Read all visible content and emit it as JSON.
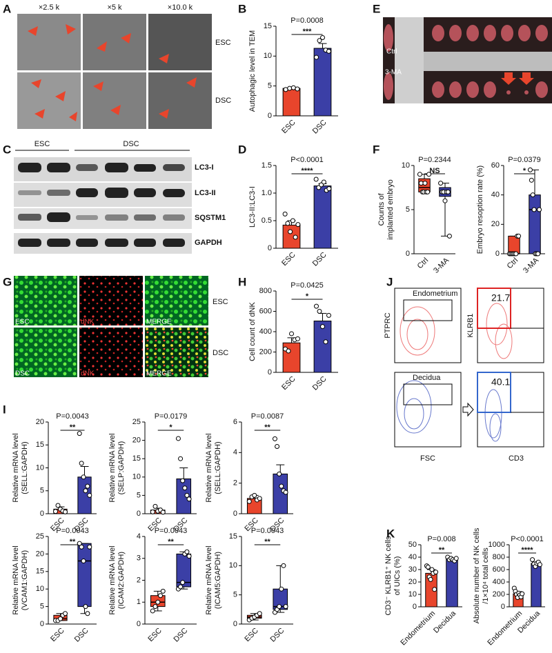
{
  "figure": {
    "panel_labels": [
      "A",
      "B",
      "C",
      "D",
      "E",
      "F",
      "G",
      "H",
      "I",
      "J",
      "K"
    ],
    "A": {
      "magnifications": [
        "×2.5 k",
        "×5 k",
        "×10.0 k"
      ],
      "rows": [
        "ESC",
        "DSC"
      ]
    },
    "C": {
      "groups": [
        "ESC",
        "DSC"
      ],
      "bands": [
        "LC3-I",
        "LC3-II",
        "SQSTM1",
        "GAPDH"
      ]
    },
    "E": {
      "rows": [
        "Ctrl",
        "3-MA"
      ]
    },
    "G": {
      "columns": [
        "ESC",
        "dNK",
        "MERGE"
      ],
      "columns_bottom": [
        "DSC",
        "dNK",
        "MERGE"
      ],
      "rows": [
        "ESC",
        "DSC"
      ]
    },
    "J": {
      "rows": [
        "Endometrium",
        "Decidua"
      ],
      "x_labels": [
        "FSC",
        "CD3"
      ],
      "y_labels": [
        "PTPRC",
        "KLRB1"
      ],
      "gate_values": [
        21.7,
        40.1
      ]
    }
  },
  "chart_data": [
    {
      "type": "bar",
      "y_label": [
        "Autophagic level in TEM"
      ],
      "categories": [
        "ESC",
        "DSC"
      ],
      "values": [
        4.6,
        11.3
      ],
      "errors": [
        0.1,
        0.8
      ],
      "colors": [
        "#e8452c",
        "#3b3fa6"
      ],
      "points": [
        [
          4.4,
          4.6,
          4.7,
          4.5
        ],
        [
          9.8,
          12.6,
          13.1,
          11.0,
          10.8
        ]
      ],
      "ylim": [
        0,
        15
      ],
      "yticks": [
        0,
        5,
        10,
        15
      ],
      "annotation": "P=0.0008",
      "significance": "***"
    },
    {
      "type": "bar",
      "y_label": [
        "LC3-II:LC3-I"
      ],
      "categories": [
        "ESC",
        "DSC"
      ],
      "values": [
        0.42,
        1.13
      ],
      "errors": [
        0.08,
        0.04
      ],
      "colors": [
        "#e8452c",
        "#3b3fa6"
      ],
      "points": [
        [
          0.62,
          0.45,
          0.3,
          0.5,
          0.2,
          0.43
        ],
        [
          1.25,
          1.1,
          1.15,
          1.2,
          1.05,
          1.08
        ]
      ],
      "ylim": [
        0,
        1.5
      ],
      "yticks": [
        0,
        0.5,
        {
          "value": 1,
          "label": "1.0"
        },
        1.5
      ],
      "annotation": "P<0.0001",
      "significance": "****"
    },
    {
      "type": "box",
      "y_label": [
        "Counts of",
        "implanted embryo"
      ],
      "categories": [
        "Ctrl",
        "3-MA"
      ],
      "colors": [
        "#e8452c",
        "#3b3fa6"
      ],
      "boxes": [
        {
          "min": 7,
          "q1": 7,
          "median": 7.5,
          "q3": 8.5,
          "max": 9
        },
        {
          "min": 2,
          "q1": 6.5,
          "median": 7,
          "q3": 7.5,
          "max": 8
        }
      ],
      "points": [
        [
          9,
          8,
          7,
          7,
          8,
          7,
          7,
          9
        ],
        [
          8,
          7,
          7,
          6,
          7,
          7,
          2
        ]
      ],
      "ylim": [
        0,
        10
      ],
      "yticks": [
        0,
        5,
        10
      ],
      "annotation": "P=0.2344",
      "significance": "NS"
    },
    {
      "type": "box",
      "y_label": [
        "Embryo resoption rate (%)"
      ],
      "categories": [
        "Ctrl",
        "3-MA"
      ],
      "colors": [
        "#e8452c",
        "#3b3fa6"
      ],
      "boxes": [
        {
          "min": 0,
          "q1": 0,
          "median": 0,
          "q3": 12,
          "max": 12
        },
        {
          "min": 0,
          "q1": 0,
          "median": 30,
          "q3": 40,
          "max": 57
        }
      ],
      "points": [
        [
          0,
          0,
          0,
          0,
          0,
          0,
          12,
          12
        ],
        [
          57,
          50,
          40,
          30,
          0,
          0,
          0,
          30
        ]
      ],
      "ylim": [
        0,
        60
      ],
      "yticks": [
        0,
        20,
        40,
        60
      ],
      "annotation": "P=0.0379",
      "significance": "*"
    },
    {
      "type": "bar",
      "y_label": [
        "Cell count of dNK"
      ],
      "categories": [
        "ESC",
        "DSC"
      ],
      "values": [
        290,
        505
      ],
      "errors": [
        50,
        75
      ],
      "colors": [
        "#e8452c",
        "#3b3fa6"
      ],
      "points": [
        [
          230,
          210,
          380,
          320,
          330
        ],
        [
          650,
          600,
          450,
          300,
          560
        ]
      ],
      "ylim": [
        0,
        800
      ],
      "yticks": [
        0,
        200,
        400,
        600,
        800
      ],
      "annotation": "P=0.0425",
      "significance": "*"
    },
    {
      "type": "bar",
      "y_label": [
        "Relative mRNA level",
        "(SELL:GAPDH)"
      ],
      "categories": [
        "ESC",
        "DSC"
      ],
      "values": [
        1,
        8
      ],
      "errors": [
        0.5,
        2.3
      ],
      "colors": [
        "#e8452c",
        "#3b3fa6"
      ],
      "points": [
        [
          0.5,
          1.8,
          1,
          0.6,
          0.4
        ],
        [
          17.5,
          11,
          8,
          5,
          6,
          4
        ]
      ],
      "ylim": [
        0,
        20
      ],
      "yticks": [
        0,
        5,
        10,
        15,
        20
      ],
      "annotation": "P=0.0043",
      "significance": "**"
    },
    {
      "type": "bar",
      "y_label": [
        "Relative mRNA level",
        "(SELP:GAPDH)"
      ],
      "categories": [
        "ESC",
        "DSC"
      ],
      "values": [
        1,
        9.5
      ],
      "errors": [
        0.5,
        3
      ],
      "colors": [
        "#e8452c",
        "#3b3fa6"
      ],
      "points": [
        [
          0.5,
          2,
          0.7,
          1,
          0.4
        ],
        [
          20.5,
          15,
          9,
          7,
          5,
          4
        ]
      ],
      "ylim": [
        0,
        25
      ],
      "yticks": [
        0,
        5,
        10,
        15,
        20,
        25
      ],
      "annotation": "P=0.0179",
      "significance": "*"
    },
    {
      "type": "bar",
      "y_label": [
        "Relative mRNA level",
        "(SELL:GAPDH)"
      ],
      "categories": [
        "ESC",
        "DSC"
      ],
      "values": [
        1,
        2.6
      ],
      "errors": [
        0.2,
        0.6
      ],
      "colors": [
        "#e8452c",
        "#3b3fa6"
      ],
      "points": [
        [
          0.8,
          1.1,
          1.2,
          0.9,
          1
        ],
        [
          4.9,
          4.4,
          2.6,
          1.8,
          1.5,
          1.4
        ]
      ],
      "ylim": [
        0,
        6
      ],
      "yticks": [
        0,
        2,
        4,
        6
      ],
      "annotation": "P=0.0087",
      "significance": "**"
    },
    {
      "type": "box",
      "y_label": [
        "Relative mRNA level",
        "(VCAM1:GAPDH)"
      ],
      "categories": [
        "ESC",
        "DSC"
      ],
      "colors": [
        "#e8452c",
        "#3b3fa6"
      ],
      "boxes": [
        {
          "min": 1,
          "q1": 1,
          "median": 1.5,
          "q3": 2.5,
          "max": 3
        },
        {
          "min": 3,
          "q1": 5,
          "median": 18,
          "q3": 23,
          "max": 23
        }
      ],
      "points": [
        [
          1,
          1,
          1.5,
          2.5,
          3
        ],
        [
          23,
          22,
          18,
          5,
          3,
          22
        ]
      ],
      "ylim": [
        0,
        25
      ],
      "yticks": [
        0,
        5,
        10,
        15,
        20,
        25
      ],
      "annotation": "P=0.0043",
      "significance": "**"
    },
    {
      "type": "box",
      "y_label": [
        "Relative mRNA level",
        "(ICAM2:GAPDH)"
      ],
      "categories": [
        "ESC",
        "DSC"
      ],
      "colors": [
        "#e8452c",
        "#3b3fa6"
      ],
      "boxes": [
        {
          "min": 0.6,
          "q1": 0.8,
          "median": 1,
          "q3": 1.3,
          "max": 1.5
        },
        {
          "min": 1.6,
          "q1": 1.7,
          "median": 1.9,
          "q3": 3.2,
          "max": 3.3
        }
      ],
      "points": [
        [
          0.6,
          0.8,
          1,
          1.3,
          1.5
        ],
        [
          1.6,
          1.7,
          1.9,
          3.2,
          3.3,
          3.1
        ]
      ],
      "ylim": [
        0,
        4
      ],
      "yticks": [
        0,
        1,
        2,
        3,
        4
      ],
      "annotation": "P=0.0043",
      "significance": "**"
    },
    {
      "type": "box",
      "y_label": [
        "Relative mRNA level",
        "(ICAM5:GAPDH)"
      ],
      "categories": [
        "ESC",
        "DSC"
      ],
      "colors": [
        "#e8452c",
        "#3b3fa6"
      ],
      "boxes": [
        {
          "min": 0.7,
          "q1": 1,
          "median": 1.2,
          "q3": 1.5,
          "max": 1.8
        },
        {
          "min": 2,
          "q1": 2.5,
          "median": 3,
          "q3": 6,
          "max": 10
        }
      ],
      "points": [
        [
          0.7,
          1,
          1.2,
          1.5,
          1.8
        ],
        [
          2,
          2.5,
          3,
          6,
          10,
          3
        ]
      ],
      "ylim": [
        0,
        15
      ],
      "yticks": [
        0,
        5,
        10,
        15
      ],
      "annotation": "P=0.0043",
      "significance": "**"
    },
    {
      "type": "bar",
      "y_label": [
        "CD3⁻ KLRB1⁺ NK cells",
        "of UICs (%)"
      ],
      "categories": [
        "Endometrium",
        "Decidua"
      ],
      "values": [
        27,
        38.5
      ],
      "errors": [
        3,
        0.7
      ],
      "colors": [
        "#e8452c",
        "#3b3fa6"
      ],
      "points": [
        [
          33,
          32,
          24,
          22,
          30,
          27,
          14,
          28
        ],
        [
          40,
          38,
          39,
          38,
          37,
          39
        ]
      ],
      "ylim": [
        0,
        50
      ],
      "yticks": [
        0,
        10,
        20,
        30,
        40,
        50
      ],
      "annotation": "P=0.008",
      "significance": "**"
    },
    {
      "type": "bar",
      "y_label": [
        "Absolute number of NK cells",
        "/1×10⁴ total cells"
      ],
      "categories": [
        "Endometrium",
        "Decidua"
      ],
      "values": [
        210,
        700
      ],
      "errors": [
        35,
        20
      ],
      "colors": [
        "#e8452c",
        "#3b3fa6"
      ],
      "points": [
        [
          300,
          250,
          200,
          150,
          220,
          190,
          160,
          210
        ],
        [
          760,
          690,
          650,
          700,
          720,
          680
        ]
      ],
      "ylim": [
        0,
        1000
      ],
      "yticks": [
        0,
        200,
        400,
        600,
        800,
        1000
      ],
      "annotation": "P<0.0001",
      "significance": "****"
    }
  ]
}
